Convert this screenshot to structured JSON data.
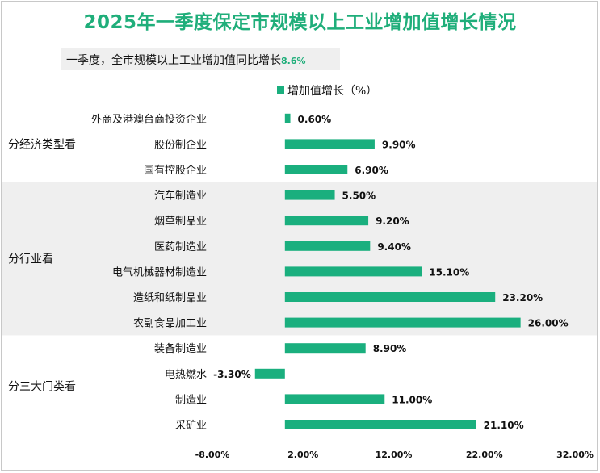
{
  "title": "2025年一季度保定市规模以上工业增加值增长情况",
  "subtitle": {
    "text": "一季度，全市规模以上工业增加值同比增长",
    "value": "8.6%"
  },
  "colors": {
    "title": "#1fae7a",
    "bar": "#1aaf7e",
    "band": "#efefef",
    "text": "#111111"
  },
  "chart_data": {
    "type": "bar",
    "orientation": "horizontal",
    "legend": {
      "label": "增加值增长（%）",
      "position": "top"
    },
    "xlim": [
      -8,
      32
    ],
    "xticks": [
      -8,
      2,
      12,
      22,
      32
    ],
    "xtick_labels": [
      "-8.00%",
      "2.00%",
      "12.00%",
      "22.00%",
      "32.00%"
    ],
    "categories": [
      "外商及港澳台商投资企业",
      "股份制企业",
      "国有控股企业",
      "汽车制造业",
      "烟草制品业",
      "医药制造业",
      "电气机械器材制造业",
      "造纸和纸制品业",
      "农副食品加工业",
      "装备制造业",
      "电热燃水",
      "制造业",
      "采矿业"
    ],
    "values": [
      0.6,
      9.9,
      6.9,
      5.5,
      9.2,
      9.4,
      15.1,
      23.2,
      26.0,
      8.9,
      -3.3,
      11.0,
      21.1
    ],
    "data_labels": [
      "0.60%",
      "9.90%",
      "6.90%",
      "5.50%",
      "9.20%",
      "9.40%",
      "15.10%",
      "23.20%",
      "26.00%",
      "8.90%",
      "-3.30%",
      "11.00%",
      "21.10%"
    ],
    "groups": [
      {
        "label": "分经济类型看",
        "start": 0,
        "end": 2,
        "shaded": false
      },
      {
        "label": "分行业看",
        "start": 3,
        "end": 8,
        "shaded": true
      },
      {
        "label": "分三大门类看",
        "start": 9,
        "end": 12,
        "shaded": false
      }
    ],
    "grid": false
  }
}
